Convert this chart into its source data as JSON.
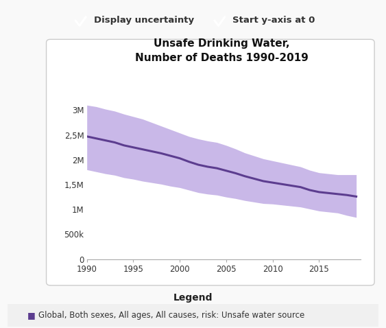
{
  "title": "Unsafe Drinking Water,\nNumber of Deaths 1990-2019",
  "line_color": "#5c3d8f",
  "fill_color": "#c9b8e8",
  "legend_label": "Global, Both sexes, All ages, All causes, risk: Unsafe water source",
  "legend_title": "Legend",
  "checkbox1_label": "Display uncertainty",
  "checkbox2_label": "Start y-axis at 0",
  "years": [
    1990,
    1991,
    1992,
    1993,
    1994,
    1995,
    1996,
    1997,
    1998,
    1999,
    2000,
    2001,
    2002,
    2003,
    2004,
    2005,
    2006,
    2007,
    2008,
    2009,
    2010,
    2011,
    2012,
    2013,
    2014,
    2015,
    2016,
    2017,
    2018,
    2019
  ],
  "central": [
    2470000,
    2430000,
    2390000,
    2350000,
    2290000,
    2250000,
    2210000,
    2170000,
    2130000,
    2080000,
    2030000,
    1960000,
    1900000,
    1860000,
    1830000,
    1780000,
    1730000,
    1670000,
    1620000,
    1570000,
    1540000,
    1510000,
    1480000,
    1450000,
    1390000,
    1350000,
    1330000,
    1310000,
    1290000,
    1260000
  ],
  "upper": [
    3100000,
    3070000,
    3020000,
    2980000,
    2920000,
    2870000,
    2820000,
    2750000,
    2680000,
    2610000,
    2540000,
    2470000,
    2420000,
    2380000,
    2350000,
    2290000,
    2220000,
    2140000,
    2080000,
    2020000,
    1980000,
    1940000,
    1900000,
    1860000,
    1790000,
    1740000,
    1720000,
    1700000,
    1700000,
    1700000
  ],
  "lower": [
    1800000,
    1760000,
    1720000,
    1690000,
    1640000,
    1610000,
    1570000,
    1540000,
    1510000,
    1470000,
    1440000,
    1390000,
    1340000,
    1310000,
    1290000,
    1250000,
    1220000,
    1180000,
    1150000,
    1120000,
    1110000,
    1090000,
    1070000,
    1050000,
    1010000,
    970000,
    950000,
    930000,
    880000,
    840000
  ],
  "ylim": [
    0,
    3500000
  ],
  "yticks": [
    0,
    500000,
    1000000,
    1500000,
    2000000,
    2500000,
    3000000
  ],
  "ytick_labels": [
    "0",
    "500k",
    "1M",
    "1,5M",
    "2M",
    "2,5M",
    "3M"
  ],
  "xticks": [
    1990,
    1995,
    2000,
    2005,
    2010,
    2015
  ],
  "page_bg": "#f9f9f9",
  "chart_bg": "#ffffff",
  "border_color": "#cccccc",
  "checkbox_color": "#3a9c4e",
  "legend_bg": "#f0f0f0",
  "text_color": "#333333"
}
